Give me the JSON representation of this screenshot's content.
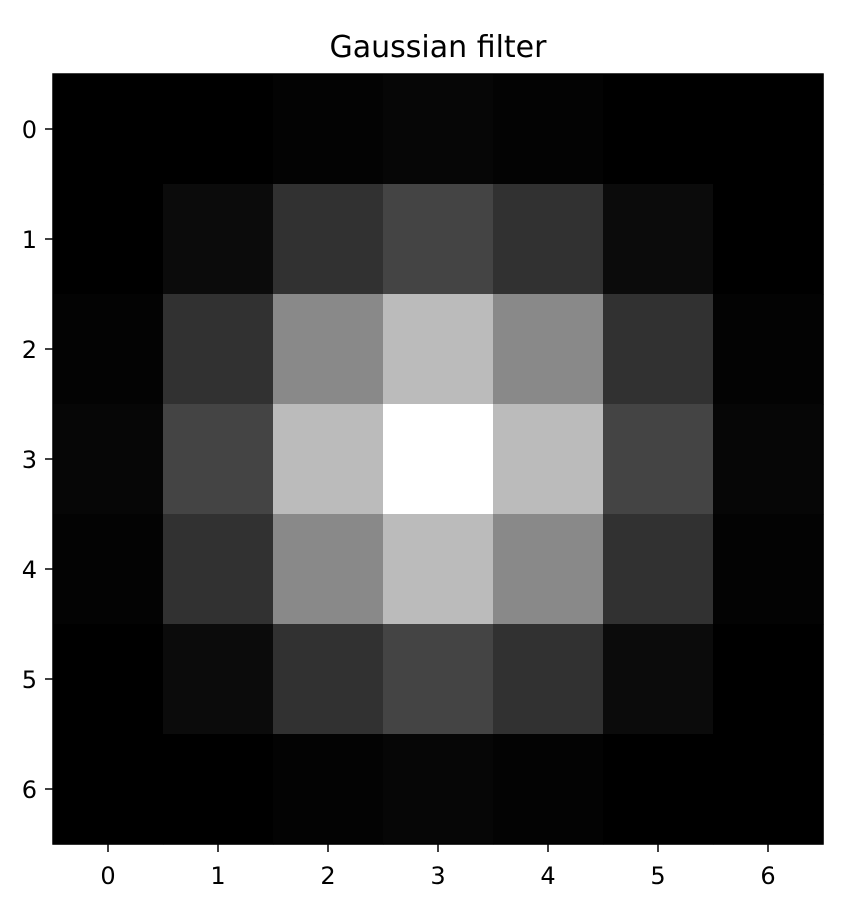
{
  "chart_data": {
    "type": "heatmap",
    "title": "Gaussian filter",
    "xlabel": "",
    "ylabel": "",
    "colormap": "gray",
    "x_ticks": [
      "0",
      "1",
      "2",
      "3",
      "4",
      "5",
      "6"
    ],
    "y_ticks": [
      "0",
      "1",
      "2",
      "3",
      "4",
      "5",
      "6"
    ],
    "grid": false,
    "legend": "none",
    "values": [
      [
        0.0,
        0.0002,
        0.011,
        0.0249,
        0.011,
        0.0002,
        0.0
      ],
      [
        0.0002,
        0.0425,
        0.1913,
        0.2677,
        0.1913,
        0.0425,
        0.0002
      ],
      [
        0.011,
        0.1913,
        0.5368,
        0.7325,
        0.5368,
        0.1913,
        0.011
      ],
      [
        0.0249,
        0.2677,
        0.7325,
        1.0,
        0.7325,
        0.2677,
        0.0249
      ],
      [
        0.011,
        0.1913,
        0.5368,
        0.7325,
        0.5368,
        0.1913,
        0.011
      ],
      [
        0.0002,
        0.0425,
        0.1913,
        0.2677,
        0.1913,
        0.0425,
        0.0002
      ],
      [
        0.0,
        0.0002,
        0.011,
        0.0249,
        0.011,
        0.0002,
        0.0
      ]
    ]
  }
}
